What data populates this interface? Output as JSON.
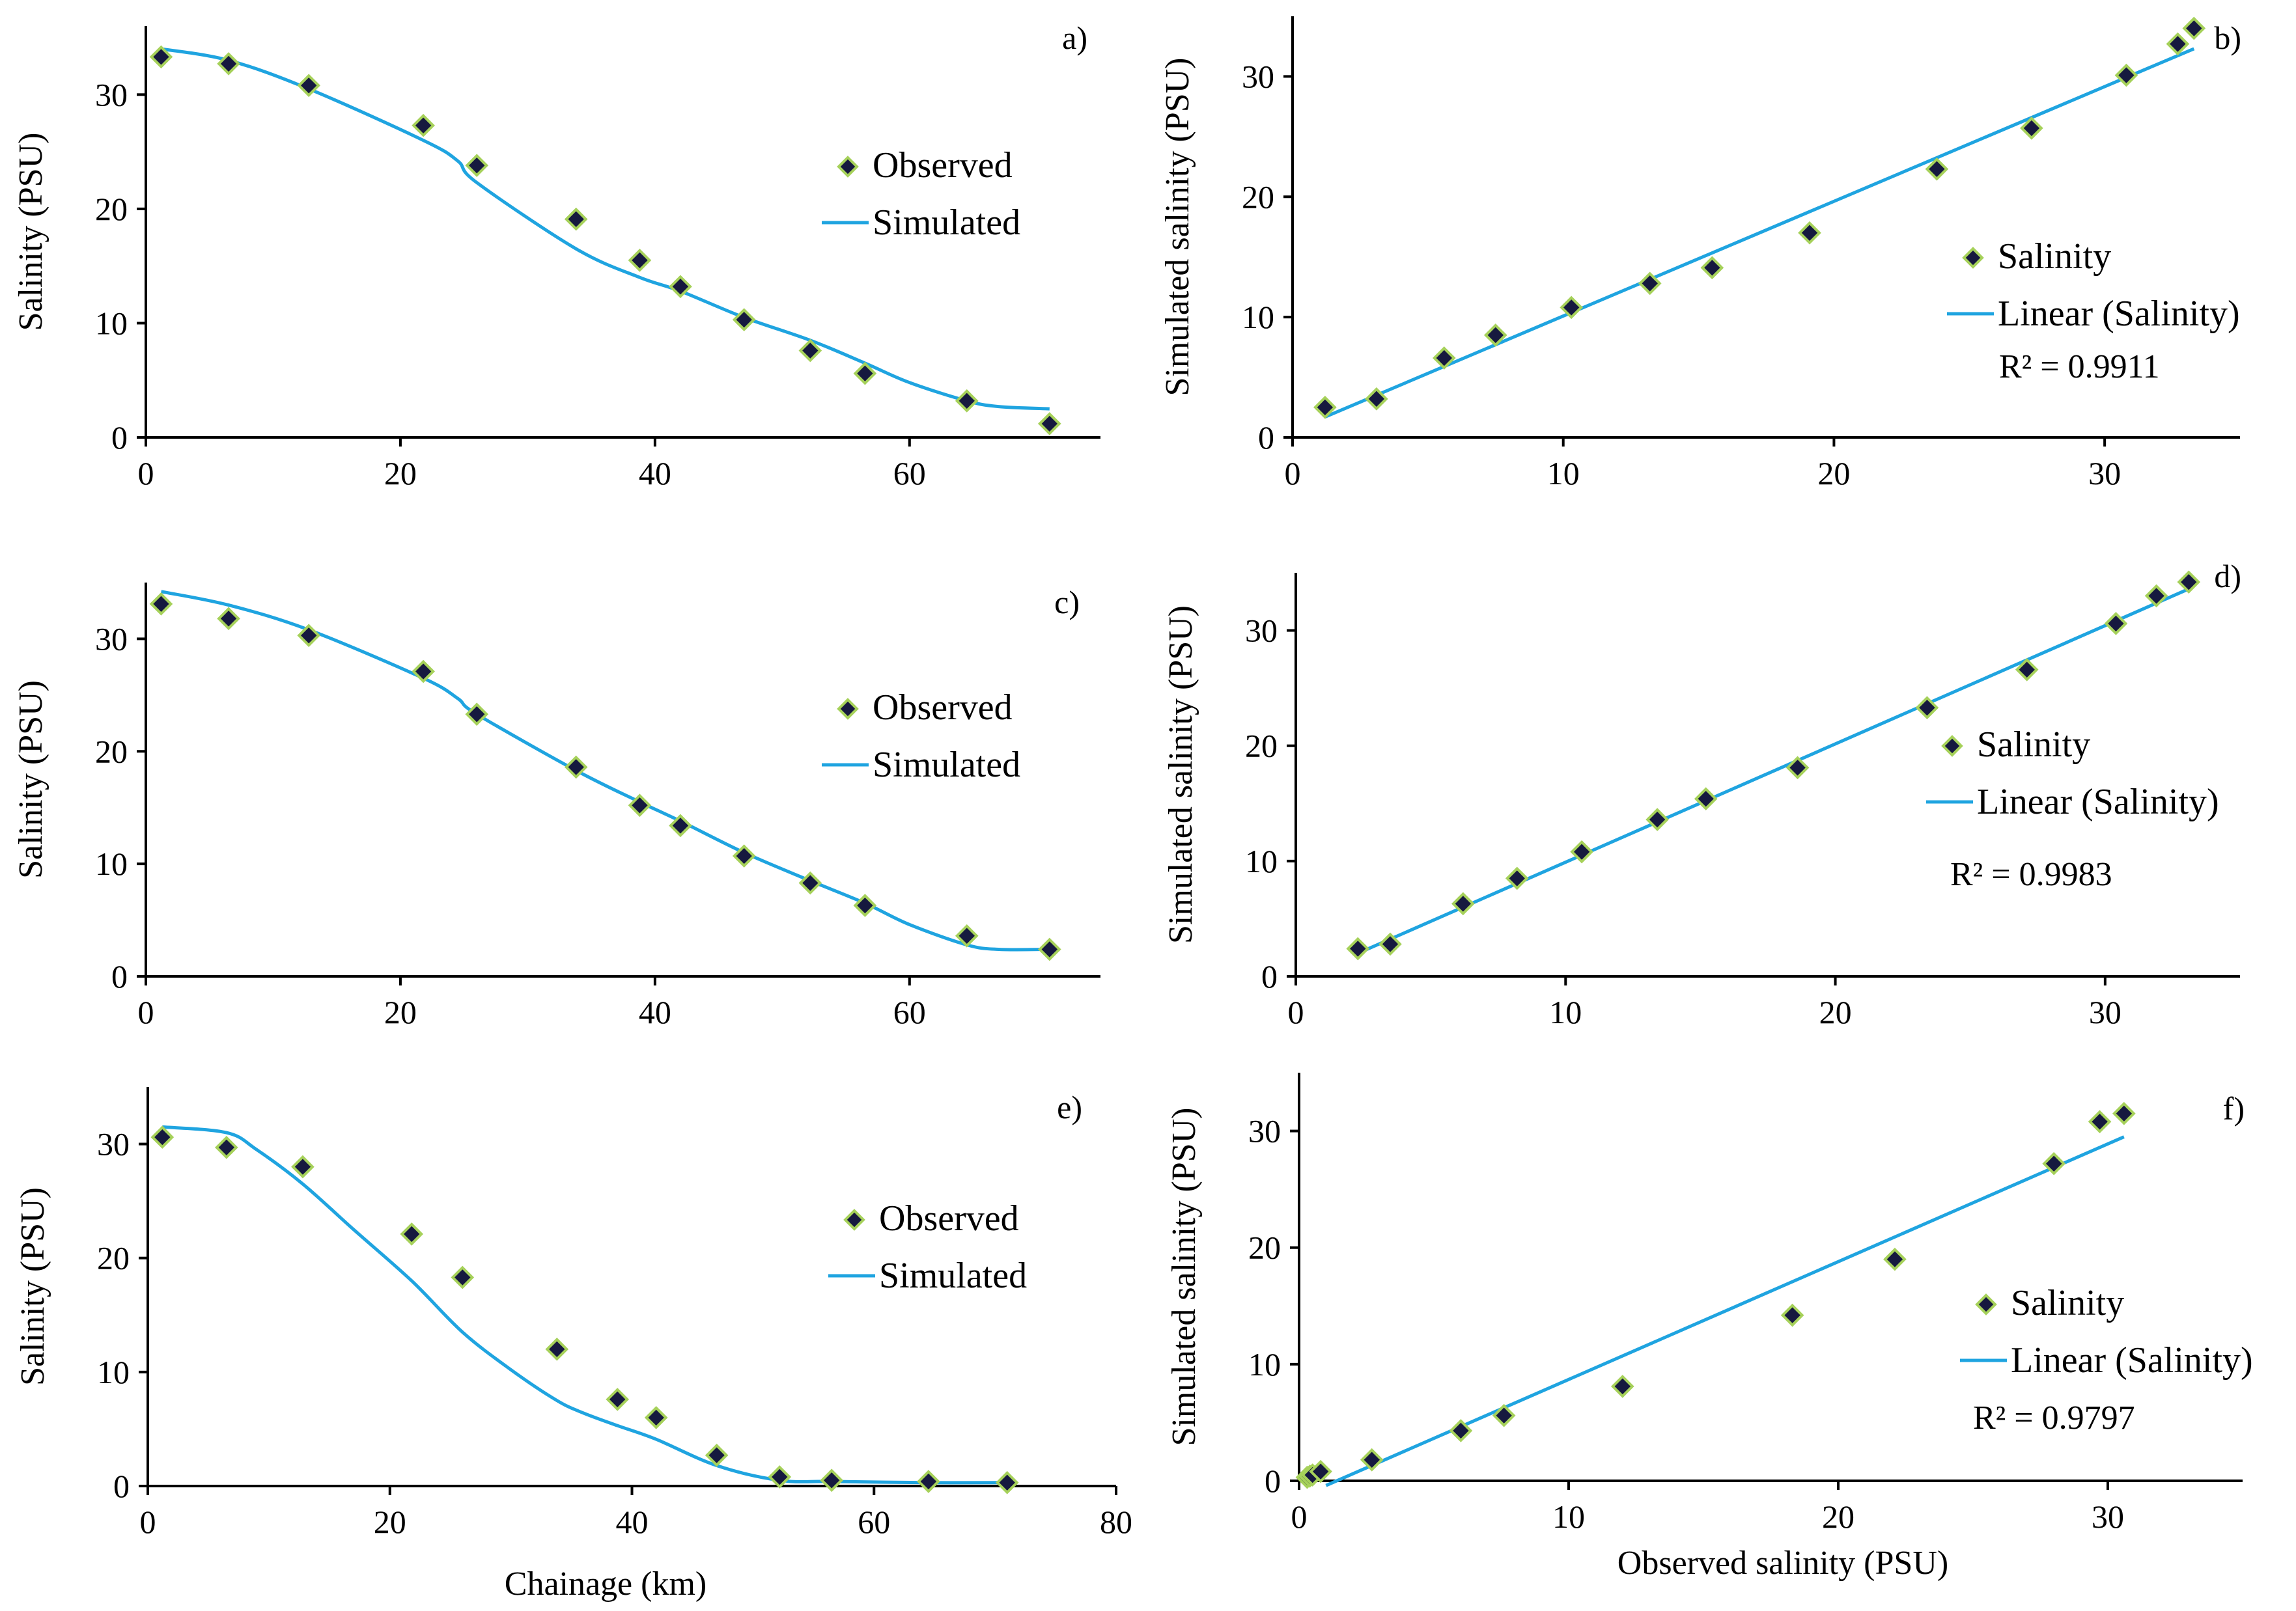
{
  "chart_data": [
    {
      "id": "a",
      "type": "scatter",
      "panel_label": "a)",
      "xlabel": "",
      "ylabel": "Salinity (PSU)",
      "xlim": [
        0,
        75
      ],
      "ylim": [
        0,
        36
      ],
      "xticks": [
        0,
        20,
        40,
        60
      ],
      "yticks": [
        0,
        10,
        20,
        30
      ],
      "legend": [
        "Observed",
        "Simulated"
      ],
      "legend_position": "right-middle",
      "series": [
        {
          "name": "Observed",
          "kind": "points",
          "x": [
            1.2,
            6.5,
            12.8,
            21.8,
            26,
            33.8,
            38.8,
            42,
            47,
            52.2,
            56.5,
            64.5,
            71
          ],
          "y": [
            33.3,
            32.7,
            30.8,
            27.3,
            23.8,
            19.1,
            15.5,
            13.2,
            10.3,
            7.6,
            5.6,
            3.2,
            1.2
          ]
        },
        {
          "name": "Simulated",
          "kind": "line",
          "x": [
            1.2,
            6.5,
            12.8,
            21.8,
            24.5,
            26,
            33.8,
            38.8,
            42,
            47,
            52.2,
            56.5,
            60,
            64.5,
            67,
            71
          ],
          "y": [
            34,
            33,
            30.5,
            26,
            24.2,
            22.3,
            16.5,
            14,
            12.8,
            10.5,
            8.5,
            6.5,
            4.8,
            3.2,
            2.7,
            2.5
          ]
        }
      ]
    },
    {
      "id": "b",
      "type": "scatter",
      "panel_label": "b)",
      "xlabel": "",
      "ylabel": "Simulated salinity (PSU)",
      "xlim": [
        0,
        35
      ],
      "ylim": [
        0,
        35
      ],
      "xticks": [
        0,
        10,
        20,
        30
      ],
      "yticks": [
        0,
        10,
        20,
        30
      ],
      "legend": [
        "Salinity",
        "Linear (Salinity)"
      ],
      "legend_position": "right-middle",
      "r2_label": "R² = 0.9911",
      "series": [
        {
          "name": "Salinity",
          "kind": "points",
          "x": [
            1.2,
            3.1,
            5.6,
            7.5,
            10.3,
            13.2,
            15.5,
            19.1,
            23.8,
            27.3,
            30.8,
            32.7,
            33.3
          ],
          "y": [
            2.5,
            3.2,
            6.6,
            8.5,
            10.8,
            12.8,
            14.1,
            17,
            22.3,
            25.7,
            30.1,
            32.7,
            34
          ]
        },
        {
          "name": "Linear (Salinity)",
          "kind": "trendline",
          "x": [
            1.2,
            33.3
          ],
          "y": [
            1.7,
            32.3
          ]
        }
      ]
    },
    {
      "id": "c",
      "type": "scatter",
      "panel_label": "c)",
      "xlabel": "",
      "ylabel": "Salinity (PSU)",
      "xlim": [
        0,
        75
      ],
      "ylim": [
        0,
        35
      ],
      "xticks": [
        0,
        20,
        40,
        60
      ],
      "yticks": [
        0,
        10,
        20,
        30
      ],
      "legend": [
        "Observed",
        "Simulated"
      ],
      "legend_position": "right-middle",
      "series": [
        {
          "name": "Observed",
          "kind": "points",
          "x": [
            1.2,
            6.5,
            12.8,
            21.8,
            26,
            33.8,
            38.8,
            42,
            47,
            52.2,
            56.5,
            64.5,
            71
          ],
          "y": [
            33.1,
            31.8,
            30.3,
            27.1,
            23.3,
            18.6,
            15.2,
            13.4,
            10.7,
            8.3,
            6.3,
            3.6,
            2.4
          ]
        },
        {
          "name": "Simulated",
          "kind": "line",
          "x": [
            1.2,
            6.5,
            12.8,
            21.8,
            24.5,
            26,
            33.8,
            38.8,
            42,
            47,
            52.2,
            56.5,
            60,
            64.5,
            67,
            71
          ],
          "y": [
            34.2,
            33,
            30.8,
            26.5,
            24.7,
            23.3,
            18.3,
            15.5,
            13.8,
            11,
            8.5,
            6.5,
            4.6,
            2.8,
            2.4,
            2.4
          ]
        }
      ]
    },
    {
      "id": "d",
      "type": "scatter",
      "panel_label": "d)",
      "xlabel": "",
      "ylabel": "Simulated salinity (PSU)",
      "xlim": [
        0,
        35
      ],
      "ylim": [
        0,
        35
      ],
      "xticks": [
        0,
        10,
        20,
        30
      ],
      "yticks": [
        0,
        10,
        20,
        30
      ],
      "legend": [
        "Salinity",
        "Linear (Salinity)"
      ],
      "legend_position": "right-middle",
      "r2_label": "R² = 0.9983",
      "series": [
        {
          "name": "Salinity",
          "kind": "points",
          "x": [
            2.3,
            3.5,
            6.2,
            8.2,
            10.6,
            13.4,
            15.2,
            18.6,
            23.4,
            27.1,
            30.4,
            31.9,
            33.1
          ],
          "y": [
            2.4,
            2.8,
            6.3,
            8.5,
            10.8,
            13.6,
            15.4,
            18.1,
            23.3,
            26.6,
            30.6,
            33,
            34.2
          ]
        },
        {
          "name": "Linear (Salinity)",
          "kind": "trendline",
          "x": [
            2.3,
            33.1
          ],
          "y": [
            2.0,
            33.6
          ]
        }
      ]
    },
    {
      "id": "e",
      "type": "scatter",
      "panel_label": "e)",
      "xlabel": "Chainage (km)",
      "ylabel": "Salinity (PSU)",
      "xlim": [
        0,
        80
      ],
      "ylim": [
        0,
        35
      ],
      "xticks": [
        0,
        20,
        40,
        60,
        80
      ],
      "yticks": [
        0,
        10,
        20,
        30
      ],
      "legend": [
        "Observed",
        "Simulated"
      ],
      "legend_position": "right-middle",
      "series": [
        {
          "name": "Observed",
          "kind": "points",
          "x": [
            1.2,
            6.5,
            12.8,
            21.8,
            26,
            33.8,
            38.8,
            42,
            47,
            52.2,
            56.5,
            64.5,
            71
          ],
          "y": [
            30.6,
            29.7,
            28,
            22.1,
            18.3,
            12,
            7.6,
            6,
            2.7,
            0.8,
            0.5,
            0.4,
            0.3
          ]
        },
        {
          "name": "Simulated",
          "kind": "line",
          "x": [
            1.2,
            6.5,
            9,
            12.8,
            17,
            21.8,
            26,
            30,
            33.8,
            36,
            38.8,
            42,
            47,
            52.2,
            56.5,
            64.5,
            71
          ],
          "y": [
            31.5,
            31,
            29.5,
            26.5,
            22.5,
            18,
            13.5,
            10.2,
            7.5,
            6.4,
            5.3,
            4.1,
            1.8,
            0.5,
            0.4,
            0.3,
            0.3
          ]
        }
      ]
    },
    {
      "id": "f",
      "type": "scatter",
      "panel_label": "f)",
      "xlabel": "Observed salinity (PSU)",
      "ylabel": "Simulated salinity (PSU)",
      "xlim": [
        0,
        35
      ],
      "ylim": [
        0,
        35
      ],
      "xticks": [
        0,
        10,
        20,
        30
      ],
      "yticks": [
        0,
        10,
        20,
        30
      ],
      "legend": [
        "Salinity",
        "Linear (Salinity)"
      ],
      "legend_position": "right-middle",
      "r2_label": "R² = 0.9797",
      "series": [
        {
          "name": "Salinity",
          "kind": "points",
          "x": [
            0.3,
            0.4,
            0.5,
            0.8,
            2.7,
            6,
            7.6,
            12,
            18.3,
            22.1,
            28,
            29.7,
            30.6
          ],
          "y": [
            0.3,
            0.4,
            0.5,
            0.8,
            1.8,
            4.3,
            5.6,
            8.1,
            14.2,
            19,
            27.2,
            30.8,
            31.5
          ]
        },
        {
          "name": "Linear (Salinity)",
          "kind": "trendline",
          "x": [
            1.0,
            30.6
          ],
          "y": [
            -0.4,
            29.5
          ]
        }
      ]
    }
  ],
  "colors": {
    "marker_fill": "#16193f",
    "marker_edge": "#a6d15a",
    "line": "#1fa4e0",
    "axis": "#000000"
  }
}
